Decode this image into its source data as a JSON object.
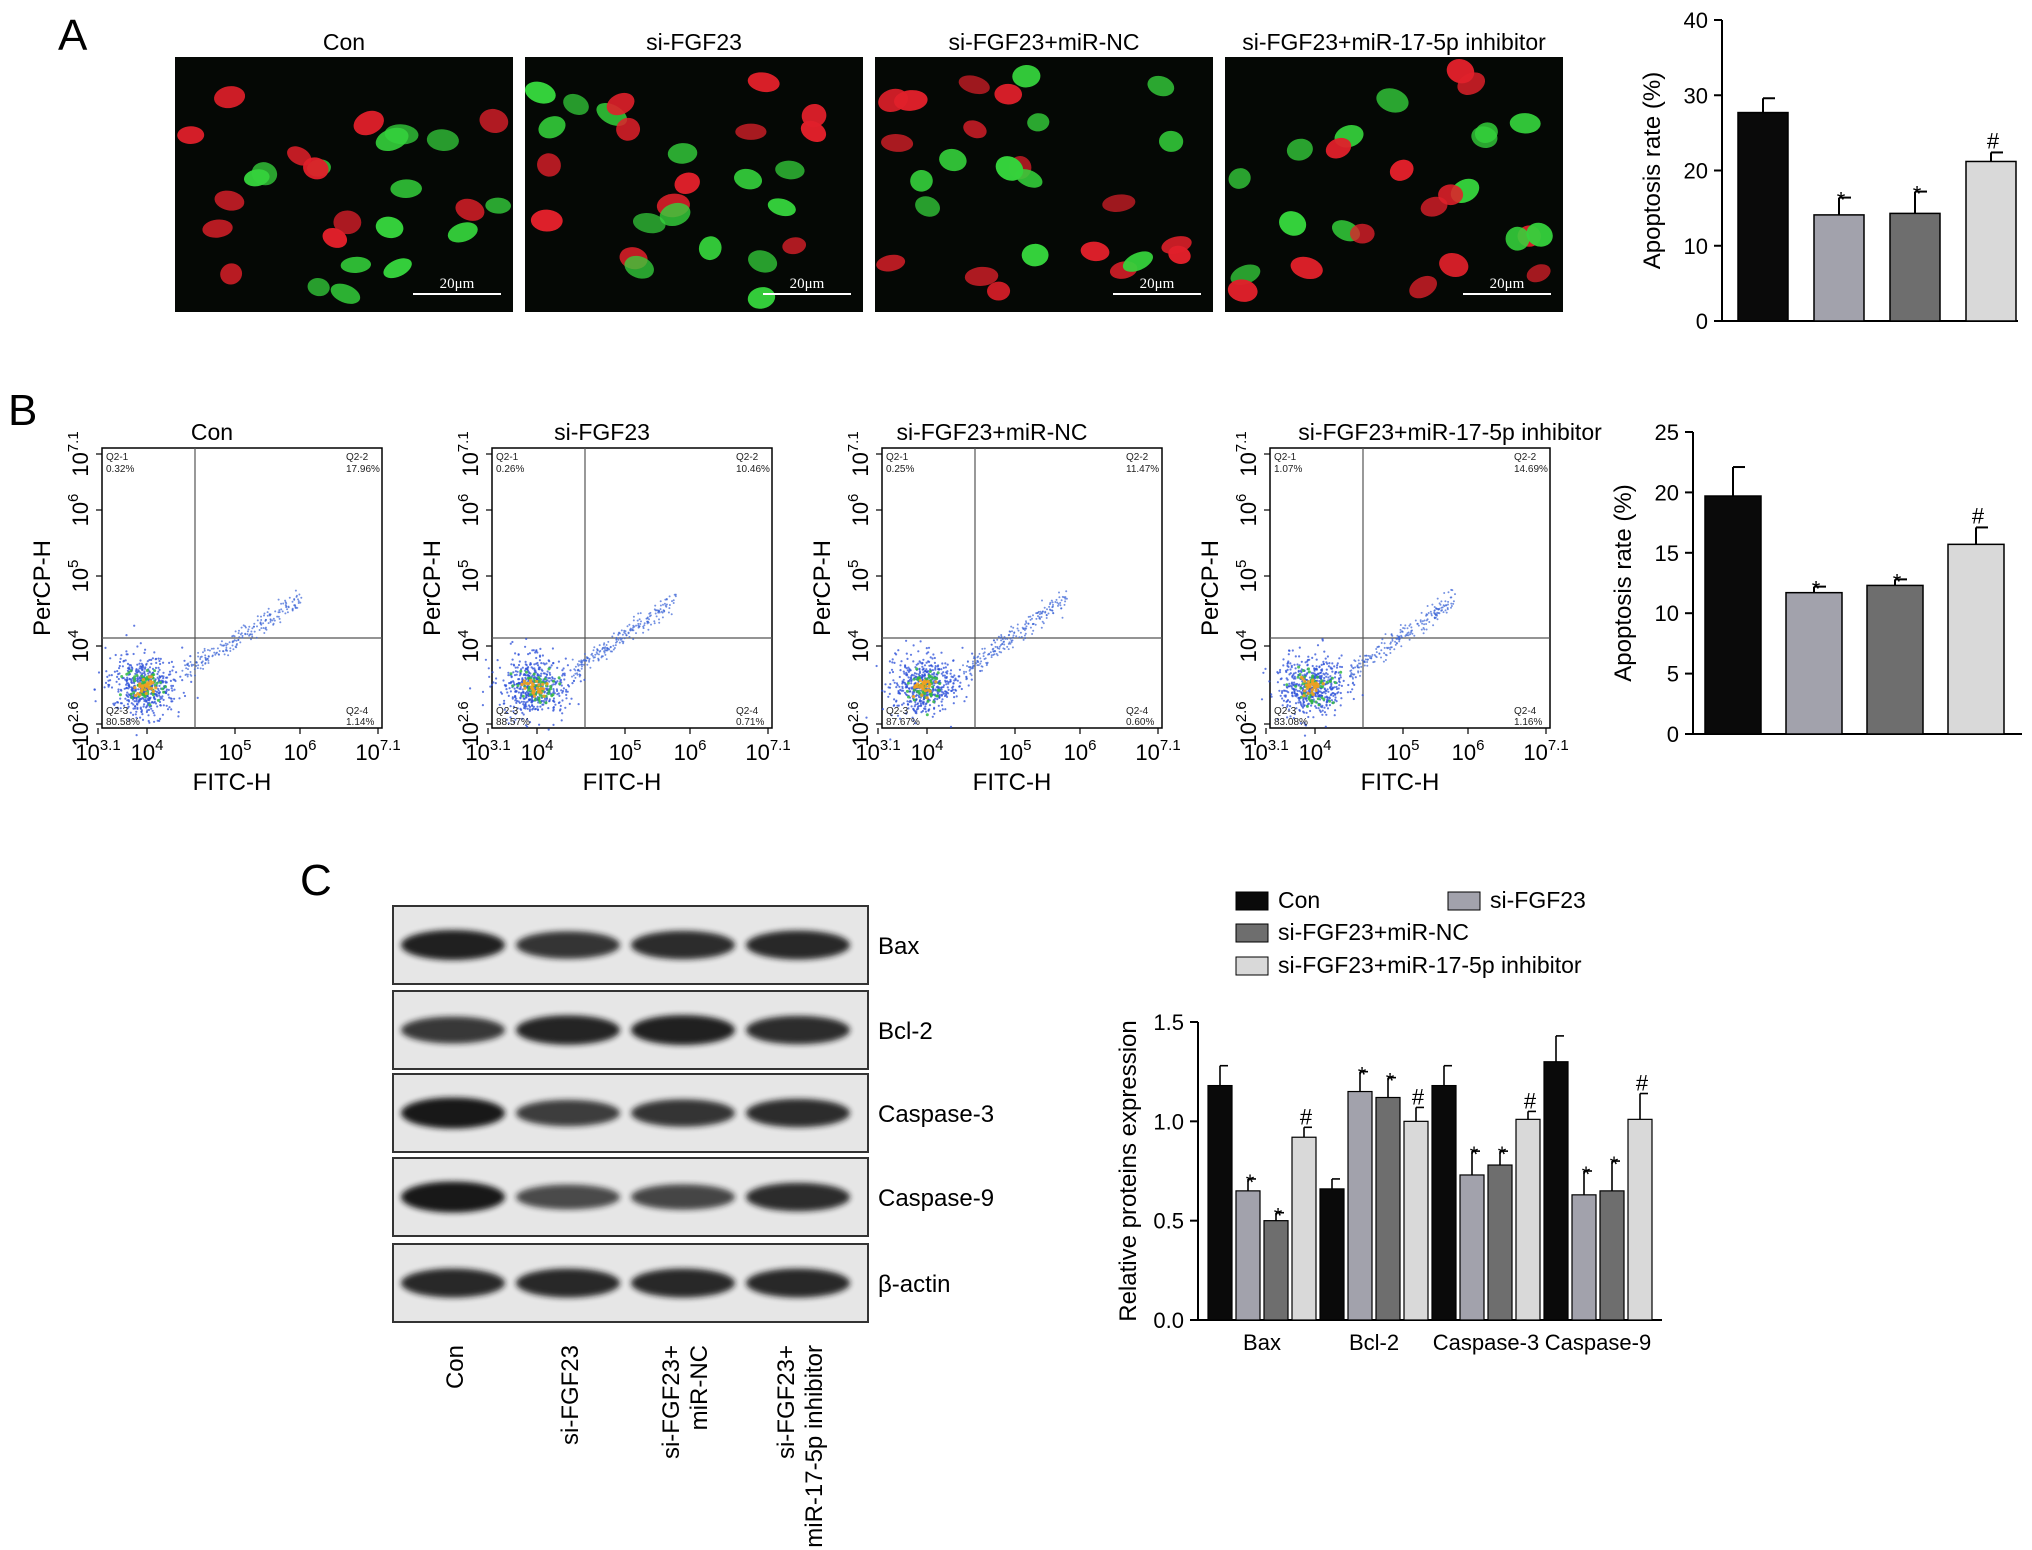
{
  "panels": {
    "a": "A",
    "b": "B",
    "c": "C"
  },
  "groups": [
    "Con",
    "si-FGF23",
    "si-FGF23+miR-NC",
    "si-FGF23+miR-17-5p inhibitor"
  ],
  "colors": {
    "con": "#0a0a0a",
    "si_fgf23": "#a2a2ac",
    "si_mirnc": "#6e6e6e",
    "si_inhibitor": "#d9d9d9"
  },
  "tunel": {
    "scale_label": "20μm"
  },
  "flow": {
    "x_label": "FITC-H",
    "y_label": "PerCP-H",
    "x_ticks": [
      {
        "base": "10",
        "exp": "3.1"
      },
      {
        "base": "10",
        "exp": "4"
      },
      {
        "base": "10",
        "exp": "5"
      },
      {
        "base": "10",
        "exp": "6"
      },
      {
        "base": "10",
        "exp": "7.1"
      }
    ],
    "y_ticks": [
      {
        "base": "10",
        "exp": "2.6"
      },
      {
        "base": "10",
        "exp": "4"
      },
      {
        "base": "10",
        "exp": "5"
      },
      {
        "base": "10",
        "exp": "6"
      },
      {
        "base": "10",
        "exp": "7.1"
      }
    ],
    "plots": [
      {
        "q1n": "Q2-1",
        "q1": "0.32%",
        "q2n": "Q2-2",
        "q2": "17.96%",
        "q3n": "Q2-3",
        "q3": "80.58%",
        "q4n": "Q2-4",
        "q4": "1.14%"
      },
      {
        "q1n": "Q2-1",
        "q1": "0.26%",
        "q2n": "Q2-2",
        "q2": "10.46%",
        "q3n": "Q2-3",
        "q3": "88.57%",
        "q4n": "Q2-4",
        "q4": "0.71%"
      },
      {
        "q1n": "Q2-1",
        "q1": "0.25%",
        "q2n": "Q2-2",
        "q2": "11.47%",
        "q3n": "Q2-3",
        "q3": "87.67%",
        "q4n": "Q2-4",
        "q4": "0.60%"
      },
      {
        "q1n": "Q2-1",
        "q1": "1.07%",
        "q2n": "Q2-2",
        "q2": "14.69%",
        "q3n": "Q2-3",
        "q3": "83.08%",
        "q4n": "Q2-4",
        "q4": "1.16%"
      }
    ]
  },
  "western": {
    "bands": [
      "Bax",
      "Bcl-2",
      "Caspase-3",
      "Caspase-9",
      "β-actin"
    ],
    "lane_labels": [
      [
        "Con"
      ],
      [
        "si-FGF23"
      ],
      [
        "si-FGF23+",
        "miR-NC"
      ],
      [
        "si-FGF23+",
        "miR-17-5p inhibitor"
      ]
    ]
  },
  "chart_data": [
    {
      "type": "bar",
      "categories": [
        "Con",
        "si-FGF23",
        "si-FGF23+miR-NC",
        "si-FGF23+miR-17-5p inhibitor"
      ],
      "values": [
        27.7,
        14.1,
        14.3,
        21.2
      ],
      "errors": [
        1.9,
        2.3,
        2.9,
        1.2
      ],
      "annotations": [
        "",
        "*",
        "*",
        "#"
      ],
      "ylabel": "Apoptosis rate (%)",
      "ylim": [
        0,
        40
      ],
      "yticks": [
        0,
        10,
        20,
        30,
        40
      ]
    },
    {
      "type": "bar",
      "categories": [
        "Con",
        "si-FGF23",
        "si-FGF23+miR-NC",
        "si-FGF23+miR-17-5p inhibitor"
      ],
      "values": [
        19.7,
        11.7,
        12.3,
        15.7
      ],
      "errors": [
        2.4,
        0.5,
        0.5,
        1.4
      ],
      "annotations": [
        "",
        "*",
        "*",
        "#"
      ],
      "ylabel": "Apoptosis rate (%)",
      "ylim": [
        0,
        25
      ],
      "yticks": [
        0,
        5,
        10,
        15,
        20,
        25
      ]
    },
    {
      "type": "bar",
      "categories": [
        "Bax",
        "Bcl-2",
        "Caspase-3",
        "Caspase-9"
      ],
      "series": [
        {
          "name": "Con",
          "values": [
            1.18,
            0.66,
            1.18,
            1.3
          ],
          "errors": [
            0.1,
            0.05,
            0.1,
            0.13
          ],
          "annotations": [
            "",
            "",
            "",
            ""
          ]
        },
        {
          "name": "si-FGF23",
          "values": [
            0.65,
            1.15,
            0.73,
            0.63
          ],
          "errors": [
            0.06,
            0.1,
            0.12,
            0.12
          ],
          "annotations": [
            "*",
            "*",
            "*",
            "*"
          ]
        },
        {
          "name": "si-FGF23+miR-NC",
          "values": [
            0.5,
            1.12,
            0.78,
            0.65
          ],
          "errors": [
            0.04,
            0.1,
            0.07,
            0.15
          ],
          "annotations": [
            "*",
            "*",
            "*",
            "*"
          ]
        },
        {
          "name": "si-FGF23+miR-17-5p inhibitor",
          "values": [
            0.92,
            1.0,
            1.01,
            1.01
          ],
          "errors": [
            0.05,
            0.07,
            0.04,
            0.13
          ],
          "annotations": [
            "#",
            "#",
            "#",
            "#"
          ]
        }
      ],
      "ylabel": "Relative proteins expression",
      "ylim": [
        0,
        1.5
      ],
      "yticks": [
        "0.0",
        "0.5",
        "1.0",
        "1.5"
      ],
      "legend": "top"
    }
  ]
}
